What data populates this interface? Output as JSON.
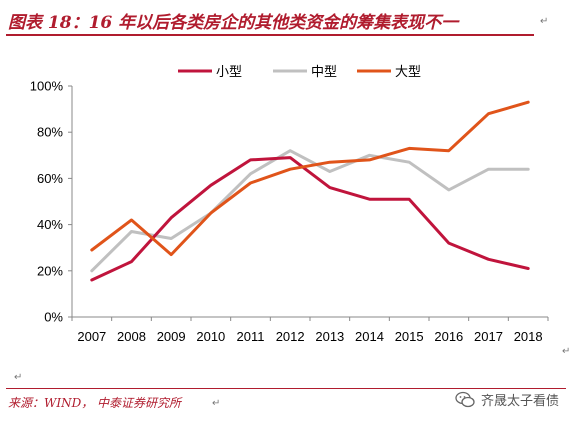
{
  "header": {
    "title": "图表 18：16 年以后各类房企的其他类资金的筹集表现不一"
  },
  "footer": {
    "source": "来源：WIND，  中泰证券研究所",
    "watermark": "齐晟太子看债"
  },
  "colors": {
    "accent": "#b01c2e",
    "small": "#c0143c",
    "medium": "#c0c0c0",
    "large": "#e0541a"
  },
  "chart_data": {
    "type": "line",
    "categories": [
      "2007",
      "2008",
      "2009",
      "2010",
      "2011",
      "2012",
      "2013",
      "2014",
      "2015",
      "2016",
      "2017",
      "2018"
    ],
    "yticks": [
      "0%",
      "20%",
      "40%",
      "60%",
      "80%",
      "100%"
    ],
    "ylim": [
      0,
      100
    ],
    "legend_position": "top-center",
    "grid": false,
    "series": [
      {
        "name": "小型",
        "color": "#c0143c",
        "values": [
          16,
          24,
          43,
          57,
          68,
          69,
          56,
          51,
          51,
          32,
          25,
          21
        ]
      },
      {
        "name": "中型",
        "color": "#c0c0c0",
        "values": [
          20,
          37,
          34,
          45,
          62,
          72,
          63,
          70,
          67,
          55,
          64,
          64
        ]
      },
      {
        "name": "大型",
        "color": "#e0541a",
        "values": [
          29,
          42,
          27,
          45,
          58,
          64,
          67,
          68,
          73,
          72,
          88,
          93
        ]
      }
    ]
  }
}
